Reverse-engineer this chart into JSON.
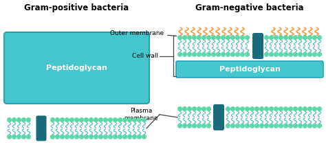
{
  "bg_color": "#ffffff",
  "teal_dark": "#1a6b7c",
  "teal_mid": "#4ab5c0",
  "green_bead": "#5dd6a8",
  "orange_lps": "#f0a050",
  "peptido_fill": "#45c5cc",
  "peptido_stroke": "#25a5b0",
  "title_left": "Gram-positive bacteria",
  "title_right": "Gram-negative bacteria",
  "label_outer": "Outer membrane",
  "label_cell": "Cell wall",
  "label_plasma": "Plasma\nmembrane",
  "label_peptido": "Peptidoglycan",
  "figw": 4.74,
  "figh": 2.39,
  "dpi": 100
}
